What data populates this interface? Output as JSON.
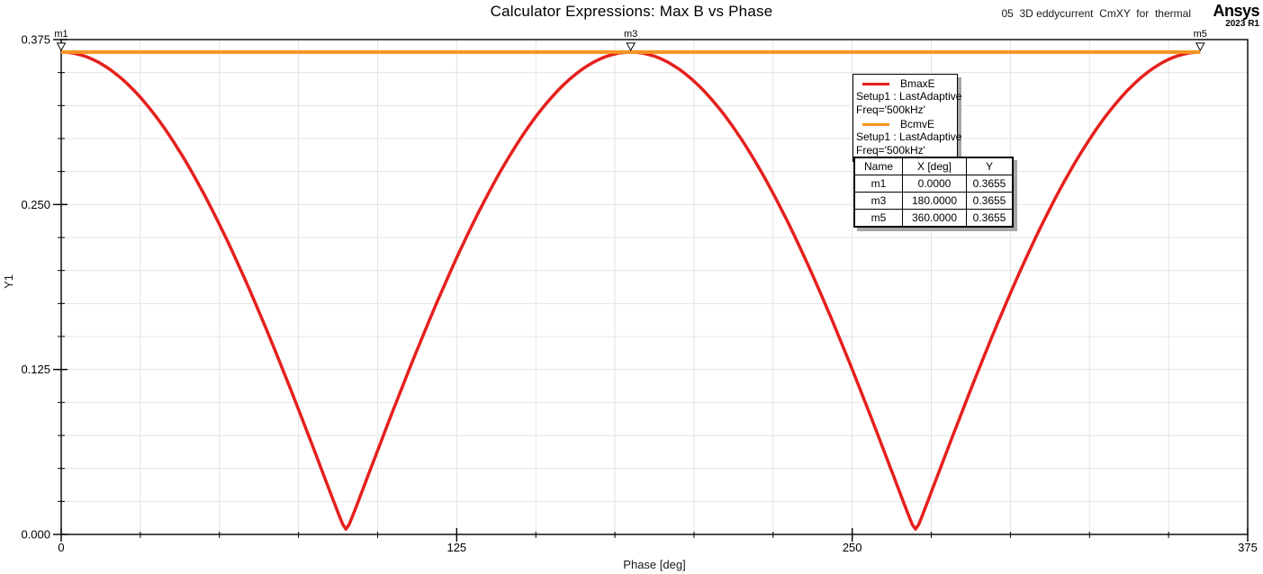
{
  "header": {
    "title": "Calculator Expressions: Max B vs Phase",
    "note": "05  3D eddycurrent  CmXY  for  thermal",
    "brand": {
      "name": "Ansys",
      "version": "2023 R1"
    }
  },
  "chart_data": {
    "type": "line",
    "title": "Calculator Expressions: Max B vs Phase",
    "xlabel": "Phase [deg]",
    "ylabel": "Y1",
    "xlim": [
      0,
      375
    ],
    "ylim": [
      0,
      0.375
    ],
    "x_major_ticks": [
      0,
      125,
      250,
      375
    ],
    "x_minor_step": 25,
    "y_major_ticks": [
      0,
      0.125,
      0.25,
      0.375
    ],
    "y_minor_step": 0.025,
    "grid": true,
    "colors": {
      "grid": "#e4e4e4",
      "axis": "#000000",
      "red_series": "#e5201d",
      "orange_series": "#f79420"
    },
    "series": [
      {
        "name": "BmaxE",
        "color": "#e5201d",
        "width": 3.5,
        "model": "rectified_cosine",
        "amplitude": 0.3655,
        "min_value": 0.004,
        "x_start": 0,
        "x_end": 360,
        "x_step": 1,
        "key_points": [
          [
            0,
            0.3655
          ],
          [
            90,
            0.004
          ],
          [
            180,
            0.3655
          ],
          [
            270,
            0.004
          ],
          [
            360,
            0.3655
          ]
        ]
      },
      {
        "name": "BcmvE",
        "color": "#f79420",
        "width": 4,
        "model": "constant",
        "value": 0.3655,
        "x_start": 0,
        "x_end": 360
      }
    ],
    "markers": [
      {
        "name": "m1",
        "x": 0,
        "y": 0.3655
      },
      {
        "name": "m3",
        "x": 180,
        "y": 0.3655
      },
      {
        "name": "m5",
        "x": 360,
        "y": 0.3655
      }
    ]
  },
  "axes": {
    "x_title": "Phase [deg]",
    "y_title": "Y1",
    "x_tick_labels": [
      "0",
      "125",
      "250",
      "375"
    ],
    "y_tick_labels": [
      "0.000",
      "0.125",
      "0.250",
      "0.375"
    ]
  },
  "legend": {
    "entries": [
      {
        "label": "BmaxE",
        "color": "#e5201d",
        "line1": "Setup1 : LastAdaptive",
        "line2": "Freq='500kHz'"
      },
      {
        "label": "BcmvE",
        "color": "#f79420",
        "line1": "Setup1 : LastAdaptive",
        "line2": "Freq='500kHz'"
      }
    ]
  },
  "marker_table": {
    "headers": [
      "Name",
      "X [deg]",
      "Y"
    ],
    "rows": [
      [
        "m1",
        "0.0000",
        "0.3655"
      ],
      [
        "m3",
        "180.0000",
        "0.3655"
      ],
      [
        "m5",
        "360.0000",
        "0.3655"
      ]
    ]
  }
}
